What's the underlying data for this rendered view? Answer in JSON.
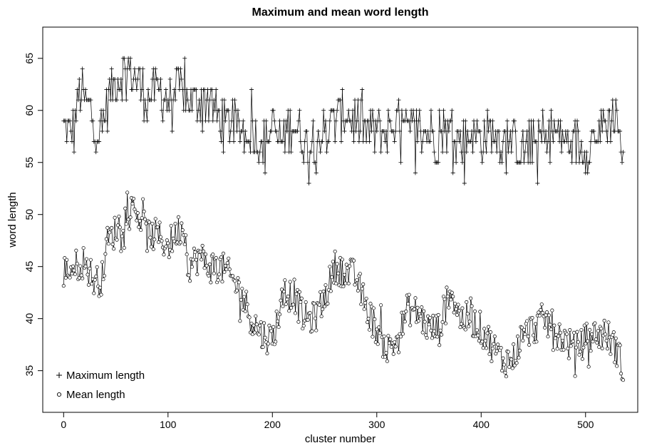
{
  "chart_data": {
    "type": "line",
    "title": "Maximum and mean word length",
    "xlabel": "cluster number",
    "ylabel": "word length",
    "xlim": [
      -20,
      550
    ],
    "ylim": [
      31,
      68
    ],
    "x_ticks": [
      0,
      100,
      200,
      300,
      400,
      500
    ],
    "y_ticks": [
      35,
      40,
      45,
      50,
      55,
      60,
      65
    ],
    "grid": false,
    "legend_position": "bottom-left",
    "x_count": 537,
    "series": [
      {
        "name": "Maximum length",
        "marker": "plus",
        "anchors": [
          [
            0,
            58
          ],
          [
            10,
            58
          ],
          [
            15,
            62
          ],
          [
            20,
            61
          ],
          [
            30,
            59
          ],
          [
            35,
            57
          ],
          [
            40,
            60
          ],
          [
            50,
            63
          ],
          [
            60,
            64
          ],
          [
            70,
            63
          ],
          [
            80,
            61
          ],
          [
            90,
            62
          ],
          [
            100,
            61
          ],
          [
            110,
            62
          ],
          [
            120,
            61
          ],
          [
            130,
            61
          ],
          [
            140,
            61
          ],
          [
            150,
            59
          ],
          [
            160,
            59
          ],
          [
            170,
            58
          ],
          [
            180,
            58
          ],
          [
            190,
            57
          ],
          [
            200,
            58
          ],
          [
            210,
            57
          ],
          [
            220,
            59
          ],
          [
            230,
            57
          ],
          [
            240,
            57
          ],
          [
            250,
            58
          ],
          [
            260,
            59
          ],
          [
            270,
            60
          ],
          [
            280,
            59
          ],
          [
            290,
            58
          ],
          [
            300,
            58
          ],
          [
            310,
            58
          ],
          [
            320,
            59
          ],
          [
            330,
            58
          ],
          [
            340,
            58
          ],
          [
            350,
            58
          ],
          [
            360,
            57
          ],
          [
            370,
            58
          ],
          [
            380,
            57
          ],
          [
            390,
            58
          ],
          [
            400,
            57
          ],
          [
            410,
            58
          ],
          [
            420,
            57
          ],
          [
            430,
            57
          ],
          [
            440,
            56
          ],
          [
            450,
            57
          ],
          [
            460,
            57
          ],
          [
            470,
            58
          ],
          [
            480,
            57
          ],
          [
            490,
            57
          ],
          [
            500,
            56
          ],
          [
            510,
            58
          ],
          [
            520,
            59
          ],
          [
            530,
            60
          ],
          [
            536,
            54
          ]
        ]
      },
      {
        "name": "Mean length",
        "marker": "circle",
        "anchors": [
          [
            0,
            44.5
          ],
          [
            10,
            45
          ],
          [
            20,
            45.5
          ],
          [
            30,
            43.5
          ],
          [
            38,
            44
          ],
          [
            40,
            47
          ],
          [
            50,
            48.5
          ],
          [
            60,
            50
          ],
          [
            70,
            50.5
          ],
          [
            80,
            48
          ],
          [
            90,
            48
          ],
          [
            100,
            47
          ],
          [
            110,
            48.5
          ],
          [
            115,
            49
          ],
          [
            120,
            45
          ],
          [
            130,
            46
          ],
          [
            140,
            45
          ],
          [
            150,
            45
          ],
          [
            160,
            44
          ],
          [
            170,
            42.5
          ],
          [
            180,
            40
          ],
          [
            190,
            38.5
          ],
          [
            200,
            38
          ],
          [
            210,
            42
          ],
          [
            220,
            42.5
          ],
          [
            230,
            40
          ],
          [
            240,
            40
          ],
          [
            250,
            42
          ],
          [
            260,
            45
          ],
          [
            270,
            44.5
          ],
          [
            280,
            44
          ],
          [
            290,
            41
          ],
          [
            300,
            39
          ],
          [
            310,
            37
          ],
          [
            320,
            38
          ],
          [
            330,
            41
          ],
          [
            340,
            40.5
          ],
          [
            350,
            39
          ],
          [
            360,
            39
          ],
          [
            370,
            43
          ],
          [
            380,
            40
          ],
          [
            390,
            40
          ],
          [
            400,
            39
          ],
          [
            410,
            37.5
          ],
          [
            420,
            36
          ],
          [
            430,
            36
          ],
          [
            440,
            38.5
          ],
          [
            450,
            39
          ],
          [
            460,
            40
          ],
          [
            470,
            39
          ],
          [
            480,
            38
          ],
          [
            490,
            37
          ],
          [
            500,
            38
          ],
          [
            510,
            38.5
          ],
          [
            520,
            38.5
          ],
          [
            530,
            37
          ],
          [
            536,
            35
          ]
        ]
      }
    ]
  }
}
